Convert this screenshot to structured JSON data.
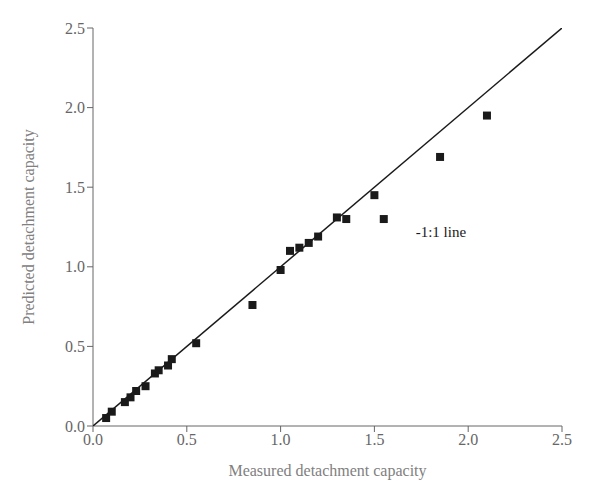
{
  "chart_data": {
    "type": "scatter",
    "xlabel": "Measured detachment capacity",
    "ylabel": "Predicted detachment capacity",
    "xlim": [
      0.0,
      2.5
    ],
    "ylim": [
      0.0,
      2.5
    ],
    "xticks": [
      {
        "value": 0.0,
        "label": "0.0"
      },
      0.5,
      {
        "value": 1.0,
        "label": "1.0"
      },
      1.5,
      {
        "value": 2.0,
        "label": "2.0"
      },
      2.5
    ],
    "yticks": [
      {
        "value": 0.0,
        "label": "0.0"
      },
      0.5,
      {
        "value": 1.0,
        "label": "1.0"
      },
      1.5,
      {
        "value": 2.0,
        "label": "2.0"
      },
      2.5
    ],
    "grid": false,
    "series": [
      {
        "type": "scatter",
        "marker": "square",
        "color": "#1a1a1a",
        "x": [
          0.07,
          0.1,
          0.17,
          0.2,
          0.23,
          0.28,
          0.33,
          0.35,
          0.4,
          0.42,
          0.55,
          0.85,
          1.0,
          1.05,
          1.1,
          1.15,
          1.2,
          1.3,
          1.35,
          1.5,
          1.55,
          1.85,
          2.1
        ],
        "values": [
          0.05,
          0.09,
          0.15,
          0.18,
          0.22,
          0.25,
          0.33,
          0.35,
          0.38,
          0.42,
          0.52,
          0.76,
          0.98,
          1.1,
          1.12,
          1.15,
          1.19,
          1.31,
          1.3,
          1.45,
          1.3,
          1.69,
          1.95
        ]
      },
      {
        "type": "line",
        "line_style": "solid",
        "color": "#1a1a1a",
        "x": [
          0.0,
          2.5
        ],
        "values": [
          0.0,
          2.5
        ]
      }
    ],
    "annotations": [
      {
        "text": "-1:1 line",
        "x": 1.72,
        "y": 1.22,
        "color": "#1a1a1a"
      }
    ]
  }
}
